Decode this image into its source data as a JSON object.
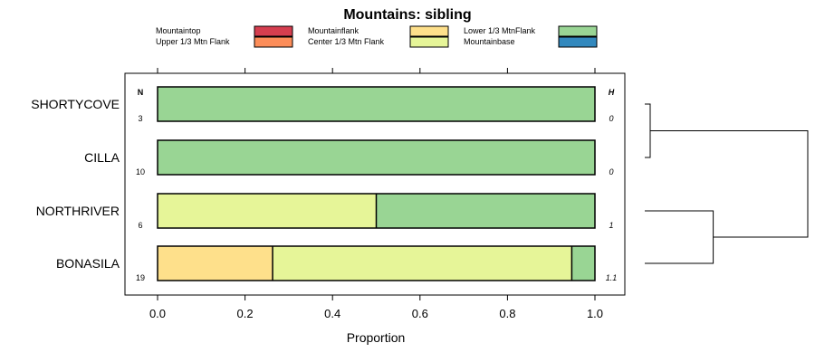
{
  "chart_data": {
    "type": "bar",
    "orientation": "horizontal",
    "stacked": true,
    "title": "Mountains: sibling",
    "xlabel": "Proportion",
    "xlim": [
      0,
      1
    ],
    "x_ticks": [
      "0.0",
      "0.2",
      "0.4",
      "0.6",
      "0.8",
      "1.0"
    ],
    "x_tick_values": [
      0,
      0.2,
      0.4,
      0.6,
      0.8,
      1.0
    ],
    "n_header": "N",
    "h_header": "H",
    "legend_position": "top",
    "legend": [
      {
        "name": "Mountaintop",
        "color": "#d53e4f"
      },
      {
        "name": "Upper 1/3 Mtn Flank",
        "color": "#fc8d59"
      },
      {
        "name": "Mountainflank",
        "color": "#fee08b"
      },
      {
        "name": "Center 1/3 Mtn Flank",
        "color": "#e6f598"
      },
      {
        "name": "Lower 1/3 MtnFlank",
        "color": "#99d594"
      },
      {
        "name": "Mountainbase",
        "color": "#3288bd"
      }
    ],
    "categories": [
      "SHORTYCOVE",
      "CILLA",
      "NORTHRIVER",
      "BONASILA"
    ],
    "n": [
      "3",
      "10",
      "6",
      "19"
    ],
    "h": [
      "0",
      "0",
      "1",
      "1.1"
    ],
    "bars": [
      {
        "category": "SHORTYCOVE",
        "segments": [
          {
            "name": "Lower 1/3 MtnFlank",
            "value": 1.0
          }
        ]
      },
      {
        "category": "CILLA",
        "segments": [
          {
            "name": "Lower 1/3 MtnFlank",
            "value": 1.0
          }
        ]
      },
      {
        "category": "NORTHRIVER",
        "segments": [
          {
            "name": "Center 1/3 Mtn Flank",
            "value": 0.5
          },
          {
            "name": "Lower 1/3 MtnFlank",
            "value": 0.5
          }
        ]
      },
      {
        "category": "BONASILA",
        "segments": [
          {
            "name": "Mountainflank",
            "value": 0.263
          },
          {
            "name": "Center 1/3 Mtn Flank",
            "value": 0.684
          },
          {
            "name": "Lower 1/3 MtnFlank",
            "value": 0.053
          }
        ]
      }
    ],
    "dendrogram": {
      "merges": [
        {
          "members": [
            "SHORTYCOVE",
            "CILLA"
          ],
          "height": 0.0
        },
        {
          "members": [
            "NORTHRIVER",
            "BONASILA"
          ],
          "height": 0.4
        },
        {
          "members": [
            [
              "SHORTYCOVE",
              "CILLA"
            ],
            [
              "NORTHRIVER",
              "BONASILA"
            ]
          ],
          "height": 1.0
        }
      ]
    }
  }
}
